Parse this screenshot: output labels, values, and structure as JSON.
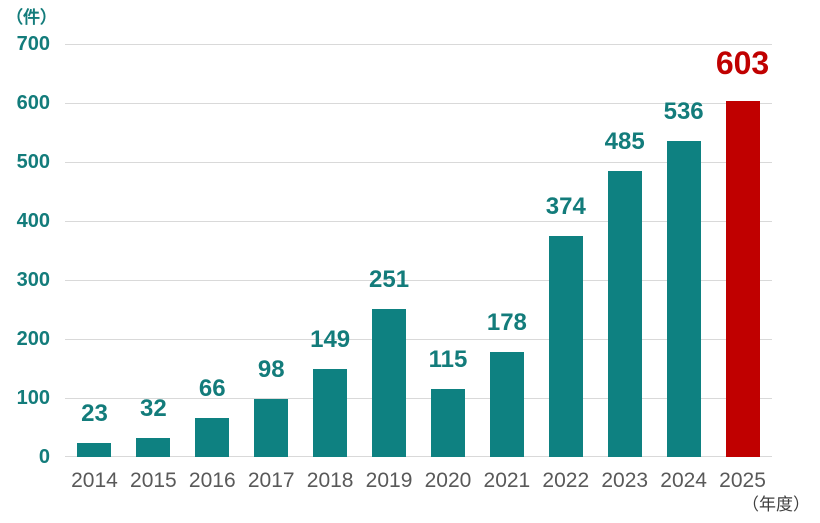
{
  "chart_data": {
    "type": "bar",
    "title": "",
    "categories": [
      "2014",
      "2015",
      "2016",
      "2017",
      "2018",
      "2019",
      "2020",
      "2021",
      "2022",
      "2023",
      "2024",
      "2025"
    ],
    "values": [
      23,
      32,
      66,
      98,
      149,
      251,
      115,
      178,
      374,
      485,
      536,
      603
    ],
    "highlight_index": 11,
    "xlabel": "",
    "ylabel": "",
    "ylim": [
      0,
      700
    ],
    "y_axis": {
      "min": 0,
      "max": 700,
      "step": 100,
      "tick_labels": [
        "0",
        "100",
        "200",
        "300",
        "400",
        "500",
        "600",
        "700"
      ],
      "unit_label": "（件）"
    },
    "x_axis": {
      "unit_label": "（年度）"
    },
    "grid": true,
    "legend": false,
    "colors": {
      "bar": "#0E8181",
      "highlight_bar": "#C00000",
      "value_label": "#137C7B",
      "highlight_value_label": "#C00000",
      "y_tick": "#137C7B",
      "x_tick": "#595959",
      "y_unit": "#137C7B",
      "x_unit": "#3F3F3F",
      "gridline": "#D9D9D9"
    }
  }
}
